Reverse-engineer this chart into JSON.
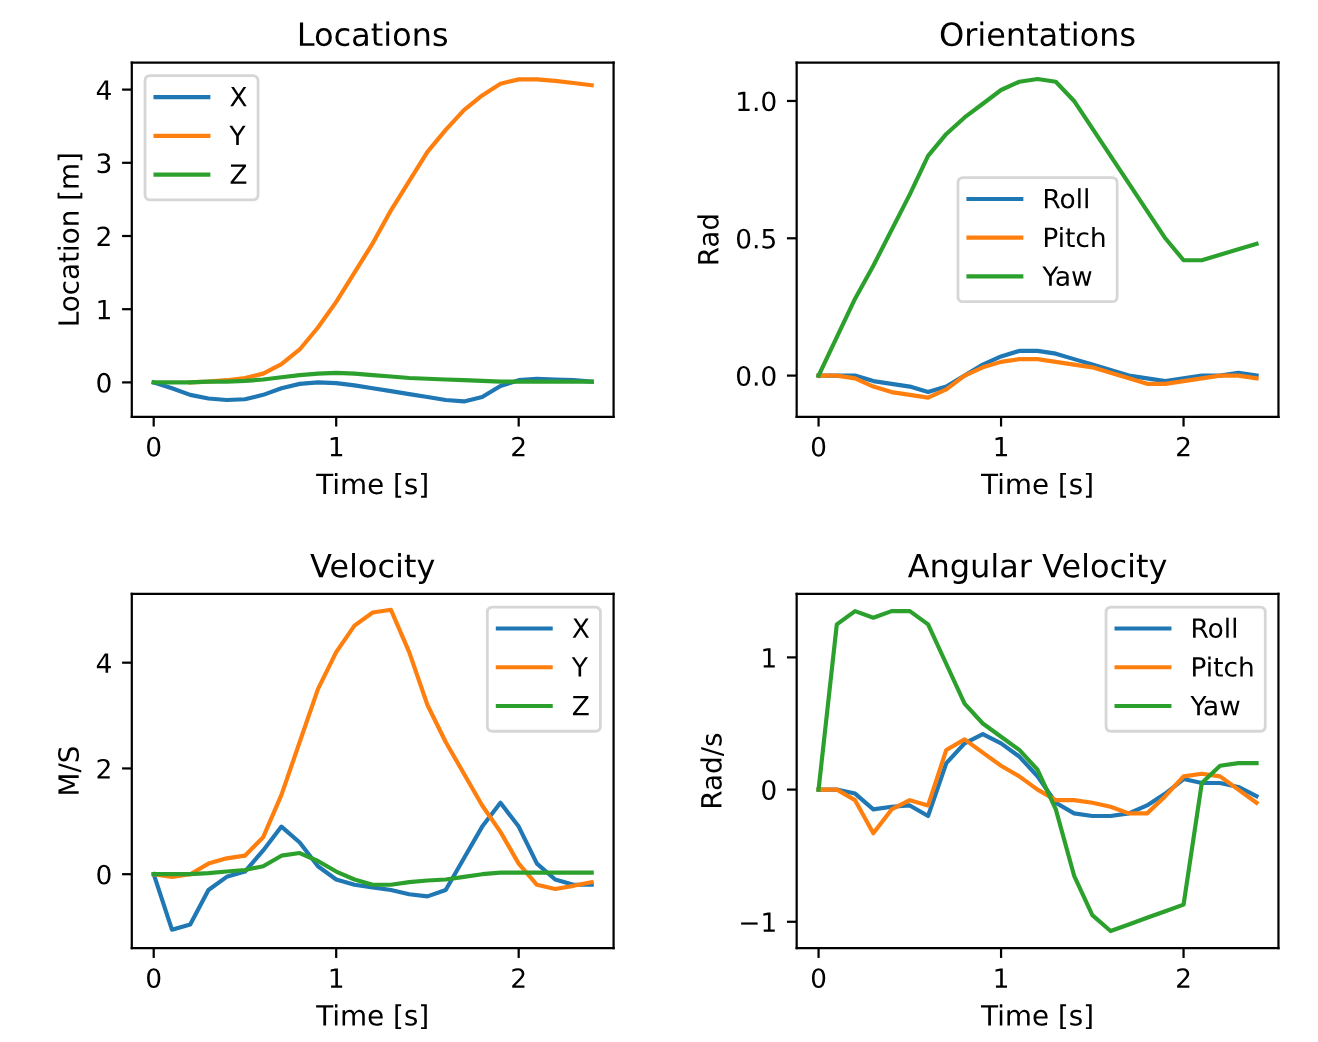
{
  "chart_data": [
    {
      "type": "line",
      "title": "Locations",
      "xlabel": "Time [s]",
      "ylabel": "Location [m]",
      "x": [
        0,
        0.1,
        0.2,
        0.3,
        0.4,
        0.5,
        0.6,
        0.7,
        0.8,
        0.9,
        1.0,
        1.1,
        1.2,
        1.3,
        1.4,
        1.5,
        1.6,
        1.7,
        1.8,
        1.9,
        2.0,
        2.1,
        2.2,
        2.3,
        2.4
      ],
      "xlim": [
        -0.12,
        2.52
      ],
      "xticks": [
        0,
        1,
        2
      ],
      "ylim": [
        -0.47,
        4.37
      ],
      "yticks": [
        0,
        1,
        2,
        3,
        4
      ],
      "legend": "top left",
      "grid": false,
      "series": [
        {
          "name": "X",
          "color": "#1f77b4",
          "values": [
            0,
            -0.08,
            -0.17,
            -0.22,
            -0.24,
            -0.23,
            -0.17,
            -0.08,
            -0.02,
            0,
            -0.01,
            -0.04,
            -0.08,
            -0.12,
            -0.16,
            -0.2,
            -0.24,
            -0.26,
            -0.2,
            -0.05,
            0.03,
            0.05,
            0.04,
            0.03,
            0.01
          ]
        },
        {
          "name": "Y",
          "color": "#ff7f0e",
          "values": [
            null,
            null,
            0,
            0.01,
            0.03,
            0.06,
            0.12,
            0.25,
            0.45,
            0.75,
            1.1,
            1.5,
            1.9,
            2.35,
            2.75,
            3.15,
            3.45,
            3.72,
            3.92,
            4.08,
            4.14,
            4.14,
            4.12,
            4.09,
            4.06
          ]
        },
        {
          "name": "Z",
          "color": "#2ca02c",
          "values": [
            0,
            0,
            0,
            0.01,
            0.01,
            0.02,
            0.04,
            0.07,
            0.1,
            0.12,
            0.13,
            0.12,
            0.1,
            0.08,
            0.06,
            0.05,
            0.04,
            0.03,
            0.02,
            0.01,
            0.01,
            0.01,
            0.01,
            0.01,
            0.01
          ]
        }
      ]
    },
    {
      "type": "line",
      "title": "Orientations",
      "xlabel": "Time [s]",
      "ylabel": "Rad",
      "x": [
        0,
        0.1,
        0.2,
        0.3,
        0.4,
        0.5,
        0.6,
        0.7,
        0.8,
        0.9,
        1.0,
        1.1,
        1.2,
        1.3,
        1.4,
        1.5,
        1.6,
        1.7,
        1.8,
        1.9,
        2.0,
        2.1,
        2.2,
        2.3,
        2.4
      ],
      "xlim": [
        -0.12,
        2.52
      ],
      "xticks": [
        0,
        1,
        2
      ],
      "ylim": [
        -0.15,
        1.14
      ],
      "yticks": [
        {
          "value": 0,
          "label": "0.0"
        },
        0.5,
        {
          "value": 1,
          "label": "1.0"
        }
      ],
      "legend": "center",
      "grid": false,
      "series": [
        {
          "name": "Roll",
          "color": "#1f77b4",
          "values": [
            0,
            0,
            0,
            -0.02,
            -0.03,
            -0.04,
            -0.06,
            -0.04,
            0,
            0.04,
            0.07,
            0.09,
            0.09,
            0.08,
            0.06,
            0.04,
            0.02,
            0,
            -0.01,
            -0.02,
            -0.01,
            0,
            0,
            0.01,
            0
          ]
        },
        {
          "name": "Pitch",
          "color": "#ff7f0e",
          "values": [
            0,
            0,
            -0.01,
            -0.04,
            -0.06,
            -0.07,
            -0.08,
            -0.05,
            0,
            0.03,
            0.05,
            0.06,
            0.06,
            0.05,
            0.04,
            0.03,
            0.01,
            -0.01,
            -0.03,
            -0.03,
            -0.02,
            -0.01,
            0,
            0,
            -0.01
          ]
        },
        {
          "name": "Yaw",
          "color": "#2ca02c",
          "values": [
            0,
            0.14,
            0.28,
            0.4,
            0.53,
            0.66,
            0.8,
            0.88,
            0.94,
            0.99,
            1.04,
            1.07,
            1.08,
            1.07,
            1.0,
            0.9,
            0.8,
            0.7,
            0.6,
            0.5,
            0.42,
            0.42,
            0.44,
            0.46,
            0.48
          ]
        }
      ]
    },
    {
      "type": "line",
      "title": "Velocity",
      "xlabel": "Time [s]",
      "ylabel": "M/S",
      "x": [
        0,
        0.1,
        0.2,
        0.3,
        0.4,
        0.5,
        0.6,
        0.7,
        0.8,
        0.9,
        1.0,
        1.1,
        1.2,
        1.3,
        1.4,
        1.5,
        1.6,
        1.7,
        1.8,
        1.9,
        2.0,
        2.1,
        2.2,
        2.3,
        2.4
      ],
      "xlim": [
        -0.12,
        2.52
      ],
      "xticks": [
        0,
        1,
        2
      ],
      "ylim": [
        -1.4,
        5.3
      ],
      "yticks": [
        0,
        2,
        4
      ],
      "legend": "top right",
      "grid": false,
      "series": [
        {
          "name": "X",
          "color": "#1f77b4",
          "values": [
            0,
            -1.05,
            -0.95,
            -0.3,
            -0.05,
            0.05,
            0.45,
            0.9,
            0.6,
            0.15,
            -0.1,
            -0.2,
            -0.25,
            -0.3,
            -0.38,
            -0.42,
            -0.3,
            0.3,
            0.9,
            1.35,
            0.9,
            0.2,
            -0.1,
            -0.2,
            -0.2
          ]
        },
        {
          "name": "Y",
          "color": "#ff7f0e",
          "values": [
            0,
            -0.05,
            0,
            0.2,
            0.3,
            0.35,
            0.7,
            1.5,
            2.5,
            3.5,
            4.2,
            4.7,
            4.95,
            5.0,
            4.2,
            3.2,
            2.5,
            1.9,
            1.3,
            0.8,
            0.2,
            -0.2,
            -0.28,
            -0.22,
            -0.15
          ]
        },
        {
          "name": "Z",
          "color": "#2ca02c",
          "values": [
            0,
            0,
            0,
            0.02,
            0.05,
            0.08,
            0.15,
            0.35,
            0.4,
            0.25,
            0.05,
            -0.1,
            -0.2,
            -0.2,
            -0.15,
            -0.12,
            -0.1,
            -0.05,
            0,
            0.03,
            0.03,
            0.03,
            0.03,
            0.03,
            0.03
          ]
        }
      ]
    },
    {
      "type": "line",
      "title": "Angular Velocity",
      "xlabel": "Time [s]",
      "ylabel": "Rad/s",
      "x": [
        0,
        0.1,
        0.2,
        0.3,
        0.4,
        0.5,
        0.6,
        0.7,
        0.8,
        0.9,
        1.0,
        1.1,
        1.2,
        1.3,
        1.4,
        1.5,
        1.6,
        1.7,
        1.8,
        1.9,
        2.0,
        2.1,
        2.2,
        2.3,
        2.4
      ],
      "xlim": [
        -0.12,
        2.52
      ],
      "xticks": [
        0,
        1,
        2
      ],
      "ylim": [
        -1.2,
        1.48
      ],
      "yticks": [
        {
          "value": -1,
          "label": "−1"
        },
        0,
        1
      ],
      "legend": "top right",
      "grid": false,
      "series": [
        {
          "name": "Roll",
          "color": "#1f77b4",
          "values": [
            0,
            0,
            -0.03,
            -0.15,
            -0.13,
            -0.12,
            -0.2,
            0.2,
            0.35,
            0.42,
            0.35,
            0.25,
            0.1,
            -0.1,
            -0.18,
            -0.2,
            -0.2,
            -0.18,
            -0.12,
            -0.03,
            0.08,
            0.05,
            0.05,
            0.02,
            -0.05
          ]
        },
        {
          "name": "Pitch",
          "color": "#ff7f0e",
          "values": [
            0,
            0,
            -0.08,
            -0.33,
            -0.15,
            -0.08,
            -0.12,
            0.3,
            0.38,
            0.28,
            0.18,
            0.1,
            0.0,
            -0.08,
            -0.08,
            -0.1,
            -0.13,
            -0.18,
            -0.18,
            -0.05,
            0.1,
            0.12,
            0.1,
            0.0,
            -0.1
          ]
        },
        {
          "name": "Yaw",
          "color": "#2ca02c",
          "values": [
            0,
            1.25,
            1.35,
            1.3,
            1.35,
            1.35,
            1.25,
            0.95,
            0.65,
            0.5,
            0.4,
            0.3,
            0.15,
            -0.15,
            -0.65,
            -0.95,
            -1.07,
            -1.02,
            -0.97,
            -0.92,
            -0.87,
            0.05,
            0.18,
            0.2,
            0.2
          ]
        }
      ]
    }
  ]
}
